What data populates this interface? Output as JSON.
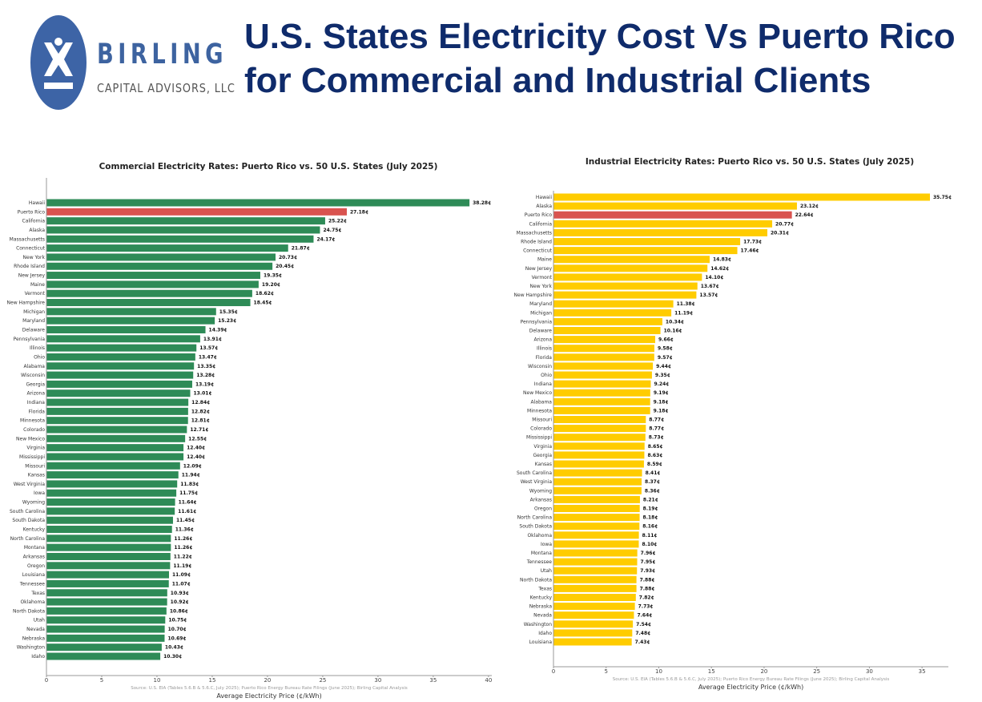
{
  "header": {
    "logo_text": "BIRLING",
    "logo_subtext": "CAPITAL ADVISORS, LLC",
    "title_line1": "U.S. States Electricity Cost Vs Puerto Rico",
    "title_line2": "for Commercial and Industrial Clients"
  },
  "colors": {
    "brand": "#3d63a0",
    "title": "#0f2b6b",
    "commercial_bar": "#2e8b57",
    "industrial_bar": "#ffcc00",
    "puerto_rico_bar": "#d9534f"
  },
  "chart_data": [
    {
      "type": "bar",
      "orientation": "horizontal",
      "title": "Commercial Electricity Rates: Puerto Rico vs. 50 U.S. States (July 2025)",
      "xlabel": "Average Electricity Price (¢/kWh)",
      "source": "Source: U.S. EIA (Tables 5.6.B & 5.6.C, July 2025); Puerto Rico Energy Bureau Rate Filings (June 2025); Birling Capital Analysis",
      "xlim": [
        0,
        40.3
      ],
      "xticks": [
        0,
        5,
        10,
        15,
        20,
        25,
        30,
        35,
        40
      ],
      "highlight": "Puerto Rico",
      "value_suffix": "¢",
      "categories": [
        "Hawaii",
        "Puerto Rico",
        "California",
        "Alaska",
        "Massachusetts",
        "Connecticut",
        "New York",
        "Rhode Island",
        "New Jersey",
        "Maine",
        "Vermont",
        "New Hampshire",
        "Michigan",
        "Maryland",
        "Delaware",
        "Pennsylvania",
        "Illinois",
        "Ohio",
        "Alabama",
        "Wisconsin",
        "Georgia",
        "Arizona",
        "Indiana",
        "Florida",
        "Minnesota",
        "Colorado",
        "New Mexico",
        "Virginia",
        "Mississippi",
        "Missouri",
        "Kansas",
        "West Virginia",
        "Iowa",
        "Wyoming",
        "South Carolina",
        "South Dakota",
        "Kentucky",
        "North Carolina",
        "Montana",
        "Arkansas",
        "Oregon",
        "Louisiana",
        "Tennessee",
        "Texas",
        "Oklahoma",
        "North Dakota",
        "Utah",
        "Nevada",
        "Nebraska",
        "Washington",
        "Idaho"
      ],
      "values": [
        38.28,
        27.18,
        25.22,
        24.75,
        24.17,
        21.87,
        20.73,
        20.45,
        19.35,
        19.2,
        18.62,
        18.45,
        15.35,
        15.23,
        14.39,
        13.91,
        13.57,
        13.47,
        13.35,
        13.28,
        13.19,
        13.01,
        12.84,
        12.82,
        12.81,
        12.71,
        12.55,
        12.4,
        12.4,
        12.09,
        11.94,
        11.83,
        11.75,
        11.64,
        11.61,
        11.45,
        11.36,
        11.26,
        11.26,
        11.22,
        11.19,
        11.09,
        11.07,
        10.93,
        10.92,
        10.86,
        10.75,
        10.7,
        10.69,
        10.43,
        10.3
      ]
    },
    {
      "type": "bar",
      "orientation": "horizontal",
      "title": "Industrial Electricity Rates: Puerto Rico vs. 50 U.S. States (July 2025)",
      "xlabel": "Average Electricity Price (¢/kWh)",
      "source": "Source: U.S. EIA (Tables 5.6.B & 5.6.C, July 2025); Puerto Rico Energy Bureau Rate Filings (June 2025); Birling Capital Analysis",
      "xlim": [
        0,
        37.5
      ],
      "xticks": [
        0,
        5,
        10,
        15,
        20,
        25,
        30,
        35
      ],
      "highlight": "Puerto Rico",
      "value_suffix": "¢",
      "categories": [
        "Hawaii",
        "Alaska",
        "Puerto Rico",
        "California",
        "Massachusetts",
        "Rhode Island",
        "Connecticut",
        "Maine",
        "New Jersey",
        "Vermont",
        "New York",
        "New Hampshire",
        "Maryland",
        "Michigan",
        "Pennsylvania",
        "Delaware",
        "Arizona",
        "Illinois",
        "Florida",
        "Wisconsin",
        "Ohio",
        "Indiana",
        "New Mexico",
        "Alabama",
        "Minnesota",
        "Missouri",
        "Colorado",
        "Mississippi",
        "Virginia",
        "Georgia",
        "Kansas",
        "South Carolina",
        "West Virginia",
        "Wyoming",
        "Arkansas",
        "Oregon",
        "North Carolina",
        "South Dakota",
        "Oklahoma",
        "Iowa",
        "Montana",
        "Tennessee",
        "Utah",
        "North Dakota",
        "Texas",
        "Kentucky",
        "Nebraska",
        "Nevada",
        "Washington",
        "Idaho",
        "Louisiana"
      ],
      "values": [
        35.75,
        23.12,
        22.64,
        20.77,
        20.31,
        17.73,
        17.46,
        14.83,
        14.62,
        14.1,
        13.67,
        13.57,
        11.38,
        11.19,
        10.34,
        10.16,
        9.66,
        9.58,
        9.57,
        9.44,
        9.35,
        9.24,
        9.19,
        9.18,
        9.18,
        8.77,
        8.77,
        8.73,
        8.65,
        8.63,
        8.59,
        8.41,
        8.37,
        8.36,
        8.21,
        8.19,
        8.18,
        8.16,
        8.11,
        8.1,
        7.96,
        7.95,
        7.93,
        7.88,
        7.88,
        7.82,
        7.73,
        7.64,
        7.54,
        7.48,
        7.43
      ]
    }
  ]
}
